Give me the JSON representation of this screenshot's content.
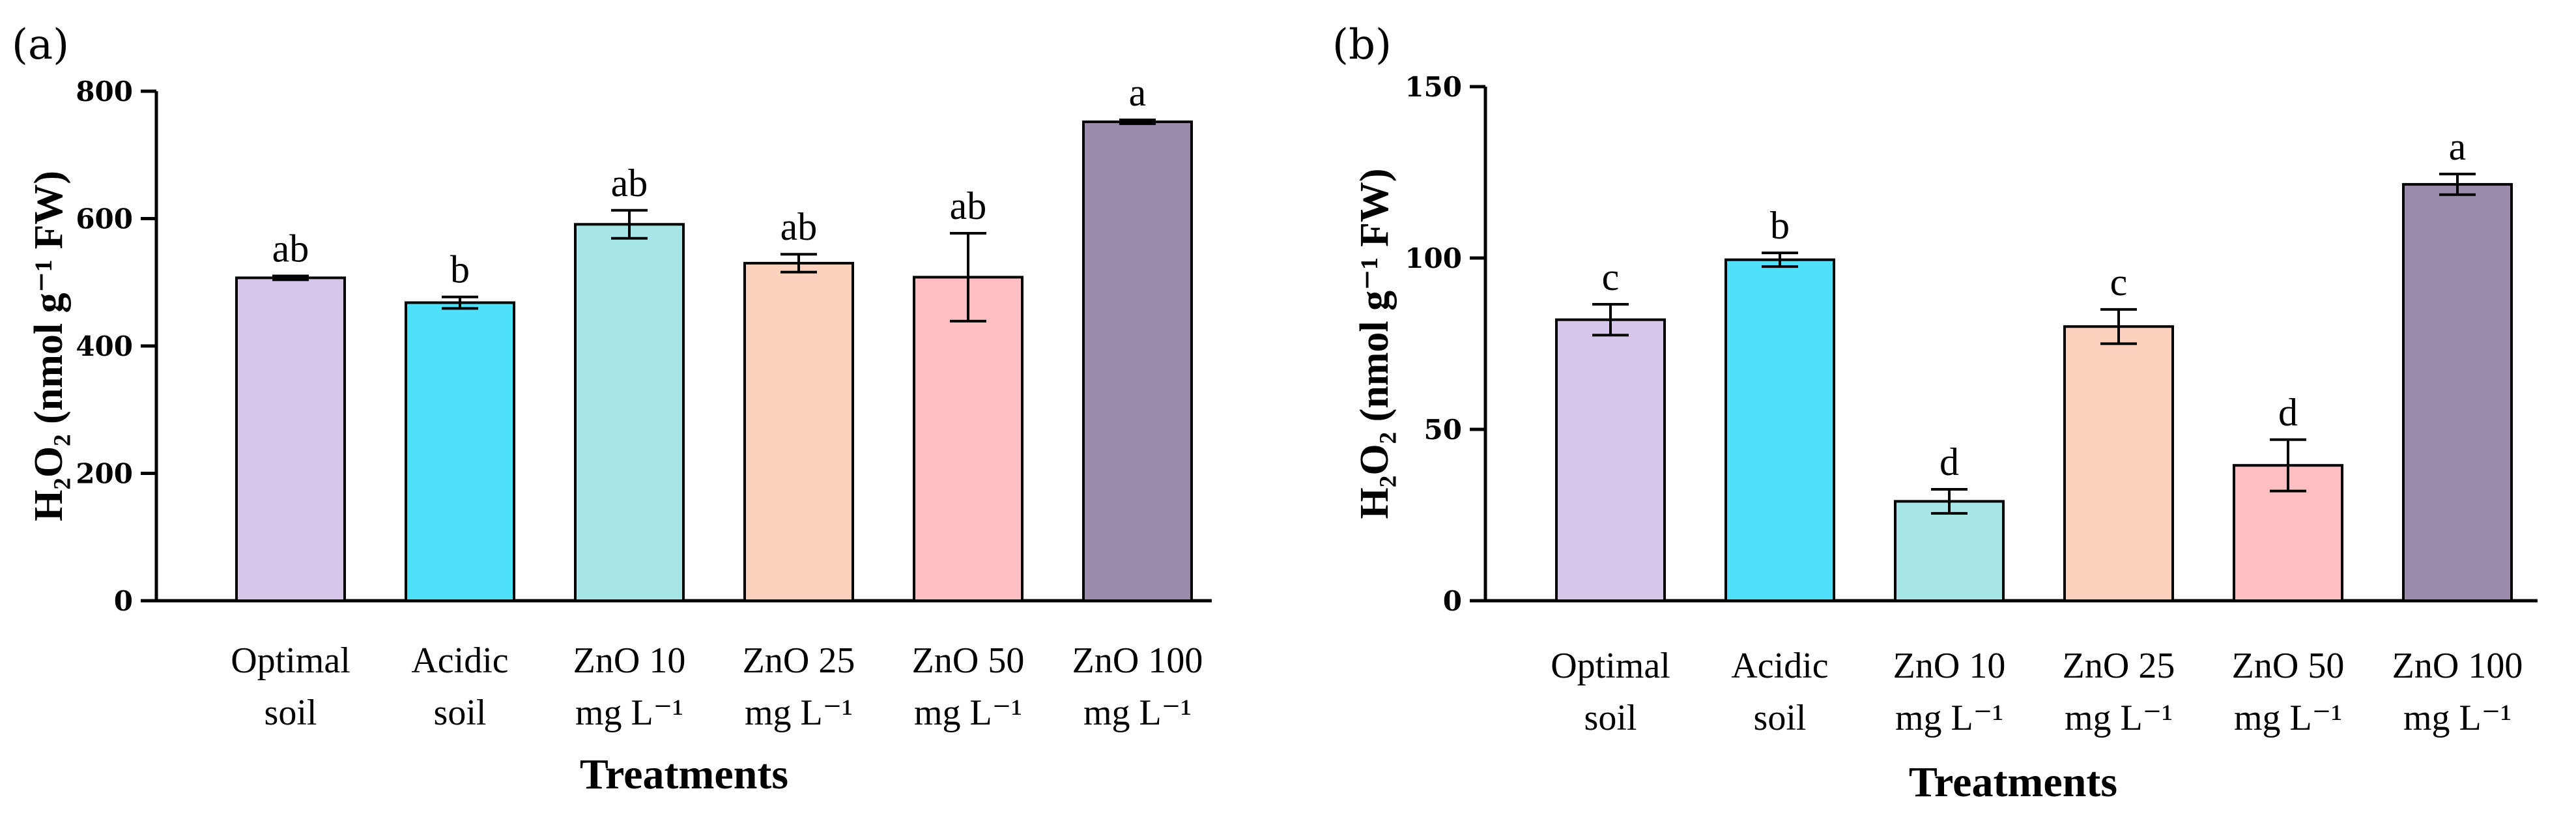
{
  "chart_data": [
    {
      "type": "bar",
      "panel_label": "(a)",
      "title": "",
      "xlabel": "Treatments",
      "ylabel": "H₂O₂ (nmol g⁻¹ FW)",
      "ylim": [
        0,
        800
      ],
      "yticks": [
        0,
        200,
        400,
        600,
        800
      ],
      "categories": [
        [
          "Optimal",
          "soil"
        ],
        [
          "Acidic",
          "soil"
        ],
        [
          "ZnO 10",
          "mg L⁻¹"
        ],
        [
          "ZnO 25",
          "mg L⁻¹"
        ],
        [
          "ZnO 50",
          "mg L⁻¹"
        ],
        [
          "ZnO 100",
          "mg L⁻¹"
        ]
      ],
      "values": [
        507,
        468,
        591,
        530,
        508,
        752
      ],
      "errors": [
        3,
        9,
        22,
        14,
        69,
        3
      ],
      "significance": [
        "ab",
        "b",
        "ab",
        "ab",
        "ab",
        "a"
      ],
      "colors": [
        "#d5c6ea",
        "#4fe1fc",
        "#a6e6e7",
        "#fcd2bc",
        "#ffbec1",
        "#9a8bab"
      ]
    },
    {
      "type": "bar",
      "panel_label": "(b)",
      "title": "",
      "xlabel": "Treatments",
      "ylabel": "H₂O₂ (nmol g⁻¹ FW)",
      "ylim": [
        0,
        150
      ],
      "yticks": [
        0,
        50,
        100,
        150
      ],
      "categories": [
        [
          "Optimal",
          "soil"
        ],
        [
          "Acidic",
          "soil"
        ],
        [
          "ZnO 10",
          "mg L⁻¹"
        ],
        [
          "ZnO 25",
          "mg L⁻¹"
        ],
        [
          "ZnO 50",
          "mg L⁻¹"
        ],
        [
          "ZnO 100",
          "mg L⁻¹"
        ]
      ],
      "values": [
        82,
        99.5,
        29,
        80,
        39.5,
        121.5
      ],
      "errors": [
        4.5,
        2,
        3.5,
        5,
        7.5,
        3
      ],
      "significance": [
        "c",
        "b",
        "d",
        "c",
        "d",
        "a"
      ],
      "colors": [
        "#d5c6ea",
        "#4fe1fc",
        "#a6e6e7",
        "#fcd2bc",
        "#ffbec1",
        "#9a8bab"
      ]
    }
  ]
}
